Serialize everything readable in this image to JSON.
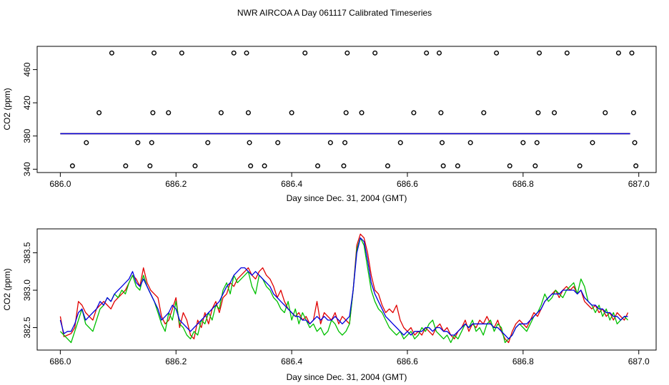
{
  "title": "NWR AIRCOA A  Day 061117  Calibrated Timeseries",
  "chart_data": [
    {
      "type": "scatter",
      "xlabel": "Day since Dec. 31, 2004 (GMT)",
      "ylabel": "CO2 (ppm)",
      "xlim": [
        685.96,
        687.03
      ],
      "ylim": [
        336,
        488
      ],
      "xticks": [
        "686.0",
        "686.2",
        "686.4",
        "686.6",
        "686.8",
        "687.0"
      ],
      "xtick_values": [
        686.0,
        686.2,
        686.4,
        686.6,
        686.8,
        687.0
      ],
      "yticks": [
        "340",
        "380",
        "420",
        "460"
      ],
      "ytick_values": [
        340,
        380,
        420,
        460
      ],
      "grid": false,
      "series": [
        {
          "marker": "open-circle",
          "color": "#000000",
          "points": [
            [
              686.021,
              344
            ],
            [
              686.045,
              372
            ],
            [
              686.067,
              408
            ],
            [
              686.089,
              480
            ],
            [
              686.113,
              344
            ],
            [
              686.134,
              372
            ],
            [
              686.155,
              344
            ],
            [
              686.158,
              372
            ],
            [
              686.16,
              408
            ],
            [
              686.162,
              480
            ],
            [
              686.187,
              408
            ],
            [
              686.21,
              480
            ],
            [
              686.233,
              344
            ],
            [
              686.255,
              372
            ],
            [
              686.278,
              408
            ],
            [
              686.3,
              480
            ],
            [
              686.322,
              480
            ],
            [
              686.325,
              408
            ],
            [
              686.327,
              372
            ],
            [
              686.329,
              344
            ],
            [
              686.353,
              344
            ],
            [
              686.376,
              372
            ],
            [
              686.4,
              408
            ],
            [
              686.423,
              480
            ],
            [
              686.445,
              344
            ],
            [
              686.467,
              372
            ],
            [
              686.49,
              344
            ],
            [
              686.492,
              372
            ],
            [
              686.494,
              408
            ],
            [
              686.496,
              480
            ],
            [
              686.521,
              408
            ],
            [
              686.544,
              480
            ],
            [
              686.566,
              344
            ],
            [
              686.588,
              372
            ],
            [
              686.611,
              408
            ],
            [
              686.633,
              480
            ],
            [
              686.655,
              480
            ],
            [
              686.658,
              408
            ],
            [
              686.66,
              372
            ],
            [
              686.662,
              344
            ],
            [
              686.687,
              344
            ],
            [
              686.709,
              372
            ],
            [
              686.732,
              408
            ],
            [
              686.754,
              480
            ],
            [
              686.777,
              344
            ],
            [
              686.8,
              372
            ],
            [
              686.821,
              344
            ],
            [
              686.824,
              372
            ],
            [
              686.826,
              408
            ],
            [
              686.828,
              480
            ],
            [
              686.854,
              408
            ],
            [
              686.876,
              480
            ],
            [
              686.898,
              344
            ],
            [
              686.92,
              372
            ],
            [
              686.942,
              408
            ],
            [
              686.965,
              480
            ],
            [
              686.988,
              480
            ],
            [
              686.991,
              408
            ],
            [
              686.993,
              372
            ],
            [
              686.995,
              344
            ]
          ]
        },
        {
          "color": "#00c000",
          "x_start": 686.0,
          "x_end": 686.985,
          "level": 382.8
        },
        {
          "color": "#e00000",
          "x_start": 686.0,
          "x_end": 686.985,
          "level": 382.8
        },
        {
          "color": "#0000e0",
          "x_start": 686.0,
          "x_end": 686.985,
          "level": 382.8
        }
      ]
    },
    {
      "type": "line",
      "xlabel": "Day since Dec. 31, 2004 (GMT)",
      "ylabel": "CO2 (ppm)",
      "xlim": [
        685.96,
        687.03
      ],
      "ylim": [
        382.2,
        383.82
      ],
      "xticks": [
        "686.0",
        "686.2",
        "686.4",
        "686.6",
        "686.8",
        "687.0"
      ],
      "xtick_values": [
        686.0,
        686.2,
        686.4,
        686.6,
        686.8,
        687.0
      ],
      "yticks": [
        "382.5",
        "383.0",
        "383.5"
      ],
      "ytick_values": [
        382.5,
        383.0,
        383.5
      ],
      "grid": false,
      "x_start": 686.0,
      "x_step": 0.00625,
      "series": [
        {
          "color": "#e00000",
          "values": [
            382.65,
            382.38,
            382.4,
            382.42,
            382.5,
            382.85,
            382.8,
            382.7,
            382.65,
            382.6,
            382.75,
            382.8,
            382.85,
            382.8,
            382.75,
            382.85,
            382.9,
            382.95,
            383.0,
            383.1,
            383.2,
            383.15,
            383.05,
            383.3,
            383.1,
            383.0,
            382.95,
            382.9,
            382.65,
            382.55,
            382.6,
            382.75,
            382.9,
            382.5,
            382.7,
            382.6,
            382.4,
            382.35,
            382.6,
            382.5,
            382.7,
            382.55,
            382.75,
            382.85,
            382.7,
            382.9,
            382.95,
            383.1,
            383.05,
            383.15,
            383.2,
            383.25,
            383.3,
            383.2,
            383.15,
            383.25,
            383.3,
            383.2,
            383.15,
            383.05,
            382.9,
            383.0,
            382.85,
            382.75,
            382.7,
            382.65,
            382.7,
            382.6,
            382.65,
            382.55,
            382.6,
            382.85,
            382.55,
            382.7,
            382.65,
            382.6,
            382.7,
            382.55,
            382.65,
            382.6,
            382.55,
            383.0,
            383.6,
            383.75,
            383.7,
            383.5,
            383.2,
            383.0,
            382.95,
            382.8,
            382.7,
            382.75,
            382.7,
            382.8,
            382.6,
            382.5,
            382.45,
            382.5,
            382.4,
            382.45,
            382.4,
            382.5,
            382.45,
            382.4,
            382.5,
            382.55,
            382.45,
            382.5,
            382.4,
            382.35,
            382.45,
            382.5,
            382.6,
            382.45,
            382.55,
            382.5,
            382.6,
            382.55,
            382.65,
            382.55,
            382.5,
            382.6,
            382.45,
            382.35,
            382.3,
            382.45,
            382.55,
            382.6,
            382.55,
            382.5,
            382.6,
            382.7,
            382.65,
            382.75,
            382.85,
            382.9,
            382.95,
            383.0,
            382.9,
            383.0,
            383.05,
            383.0,
            383.05,
            382.95,
            383.0,
            382.85,
            382.8,
            382.75,
            382.8,
            382.7,
            382.75,
            382.65,
            382.7,
            382.6,
            382.7,
            382.65,
            382.6,
            382.7
          ]
        },
        {
          "color": "#00c000",
          "values": [
            382.45,
            382.4,
            382.35,
            382.3,
            382.45,
            382.6,
            382.75,
            382.55,
            382.5,
            382.45,
            382.6,
            382.75,
            382.8,
            382.9,
            382.85,
            382.95,
            382.9,
            383.0,
            382.95,
            383.1,
            383.2,
            383.05,
            383.0,
            383.2,
            383.05,
            382.95,
            382.85,
            382.7,
            382.55,
            382.45,
            382.7,
            382.6,
            382.85,
            382.55,
            382.5,
            382.4,
            382.35,
            382.45,
            382.4,
            382.6,
            382.55,
            382.7,
            382.6,
            382.8,
            382.75,
            383.0,
            383.1,
            382.95,
            383.2,
            383.1,
            383.15,
            383.2,
            383.25,
            383.05,
            382.95,
            383.2,
            383.15,
            383.05,
            383.0,
            382.9,
            382.85,
            382.75,
            382.7,
            382.85,
            382.6,
            382.75,
            382.55,
            382.7,
            382.6,
            382.5,
            382.55,
            382.45,
            382.5,
            382.4,
            382.45,
            382.6,
            382.55,
            382.45,
            382.4,
            382.45,
            382.55,
            383.0,
            383.55,
            383.7,
            383.6,
            383.3,
            383.0,
            382.85,
            382.75,
            382.7,
            382.6,
            382.5,
            382.45,
            382.4,
            382.45,
            382.35,
            382.4,
            382.45,
            382.35,
            382.4,
            382.5,
            382.45,
            382.55,
            382.6,
            382.45,
            382.4,
            382.35,
            382.4,
            382.3,
            382.4,
            382.35,
            382.45,
            382.55,
            382.5,
            382.6,
            382.45,
            382.5,
            382.4,
            382.55,
            382.6,
            382.45,
            382.55,
            382.5,
            382.3,
            382.35,
            382.4,
            382.5,
            382.55,
            382.5,
            382.45,
            382.55,
            382.65,
            382.7,
            382.8,
            382.95,
            382.85,
            382.9,
            383.0,
            382.95,
            382.9,
            383.0,
            383.05,
            383.1,
            382.95,
            383.15,
            383.05,
            382.85,
            382.8,
            382.7,
            382.8,
            382.65,
            382.75,
            382.6,
            382.7,
            382.55,
            382.6,
            382.65,
            382.6
          ]
        },
        {
          "color": "#0000e0",
          "values": [
            382.6,
            382.42,
            382.45,
            382.45,
            382.55,
            382.7,
            382.75,
            382.6,
            382.65,
            382.7,
            382.75,
            382.85,
            382.8,
            382.9,
            382.85,
            382.95,
            383.0,
            383.05,
            383.1,
            383.15,
            383.25,
            383.1,
            383.05,
            383.15,
            383.05,
            382.95,
            382.85,
            382.75,
            382.6,
            382.65,
            382.7,
            382.8,
            382.75,
            382.6,
            382.55,
            382.5,
            382.45,
            382.5,
            382.55,
            382.6,
            382.65,
            382.7,
            382.75,
            382.8,
            382.85,
            382.95,
            383.05,
            383.1,
            383.2,
            383.25,
            383.3,
            383.3,
            383.25,
            383.2,
            383.25,
            383.2,
            383.15,
            383.1,
            383.05,
            382.95,
            382.9,
            382.85,
            382.8,
            382.75,
            382.7,
            382.65,
            382.65,
            382.6,
            382.6,
            382.55,
            382.6,
            382.65,
            382.6,
            382.65,
            382.6,
            382.6,
            382.65,
            382.6,
            382.55,
            382.6,
            382.65,
            383.0,
            383.5,
            383.7,
            383.65,
            383.4,
            383.1,
            382.95,
            382.85,
            382.75,
            382.65,
            382.6,
            382.55,
            382.5,
            382.45,
            382.4,
            382.45,
            382.4,
            382.45,
            382.45,
            382.45,
            382.5,
            382.5,
            382.45,
            382.5,
            382.5,
            382.45,
            382.45,
            382.4,
            382.4,
            382.45,
            382.5,
            382.55,
            382.5,
            382.55,
            382.55,
            382.55,
            382.55,
            382.55,
            382.55,
            382.5,
            382.5,
            382.45,
            382.4,
            382.35,
            382.4,
            382.5,
            382.55,
            382.55,
            382.55,
            382.6,
            382.65,
            382.7,
            382.75,
            382.85,
            382.9,
            382.95,
            382.95,
            382.95,
            383.0,
            383.0,
            383.0,
            383.0,
            382.95,
            383.0,
            382.9,
            382.85,
            382.8,
            382.8,
            382.75,
            382.75,
            382.7,
            382.7,
            382.65,
            382.65,
            382.6,
            382.65,
            382.65
          ]
        }
      ]
    }
  ]
}
